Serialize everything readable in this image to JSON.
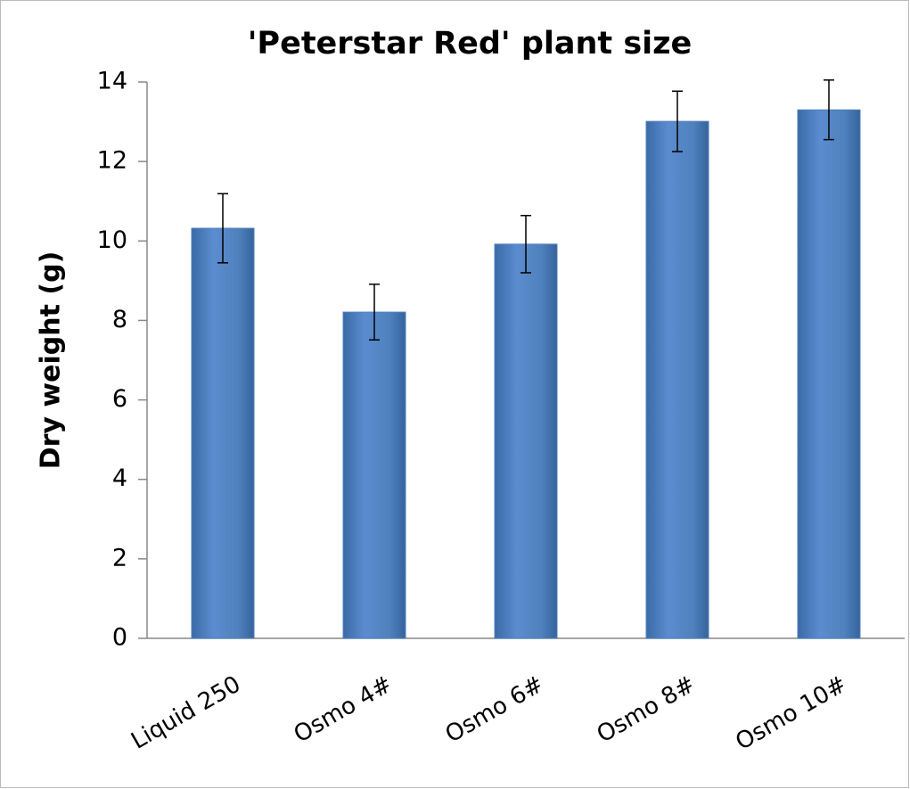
{
  "chart_data": {
    "type": "bar",
    "title": "'Peterstar Red' plant size",
    "y_label": "Dry weight (g)",
    "categories": [
      "Liquid 250",
      "Osmo 4#",
      "Osmo 6#",
      "Osmo 8#",
      "Osmo 10#"
    ],
    "values": [
      10.32,
      8.21,
      9.92,
      13.01,
      13.3
    ],
    "errors": [
      0.87,
      0.7,
      0.72,
      0.76,
      0.75
    ],
    "color": "#4f81bd",
    "ylim": [
      0,
      14
    ],
    "yticks": [
      0,
      2,
      4,
      6,
      8,
      10,
      12,
      14
    ],
    "grid": false
  }
}
